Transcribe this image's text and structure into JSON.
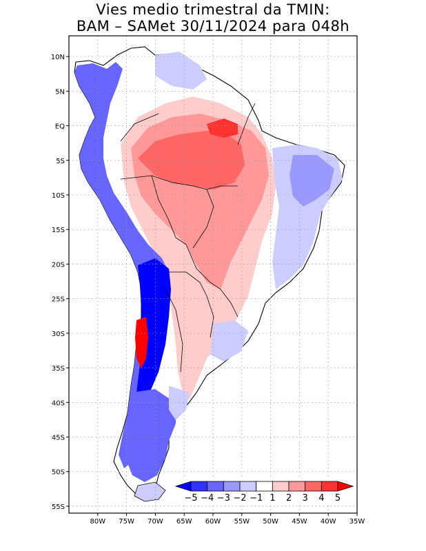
{
  "title": {
    "line1": "Vies medio trimestral da TMIN:",
    "line2": "BAM – SAMet 30/11/2024  para 048h"
  },
  "map": {
    "region": "South America",
    "lon_range": [
      -85,
      -35
    ],
    "lat_range": [
      -56,
      13
    ],
    "grid": true,
    "lat_ticks": [
      {
        "value": 10,
        "label": "10N"
      },
      {
        "value": 5,
        "label": "5N"
      },
      {
        "value": 0,
        "label": "EQ"
      },
      {
        "value": -5,
        "label": "5S"
      },
      {
        "value": -10,
        "label": "10S"
      },
      {
        "value": -15,
        "label": "15S"
      },
      {
        "value": -20,
        "label": "20S"
      },
      {
        "value": -25,
        "label": "25S"
      },
      {
        "value": -30,
        "label": "30S"
      },
      {
        "value": -35,
        "label": "35S"
      },
      {
        "value": -40,
        "label": "40S"
      },
      {
        "value": -45,
        "label": "45S"
      },
      {
        "value": -50,
        "label": "50S"
      },
      {
        "value": -55,
        "label": "55S"
      }
    ],
    "lon_ticks": [
      {
        "value": -80,
        "label": "80W"
      },
      {
        "value": -75,
        "label": "75W"
      },
      {
        "value": -70,
        "label": "70W"
      },
      {
        "value": -65,
        "label": "65W"
      },
      {
        "value": -60,
        "label": "60W"
      },
      {
        "value": -55,
        "label": "55W"
      },
      {
        "value": -50,
        "label": "50W"
      },
      {
        "value": -45,
        "label": "45W"
      },
      {
        "value": -40,
        "label": "40W"
      },
      {
        "value": -35,
        "label": "35W"
      }
    ]
  },
  "colorbar": {
    "labels": [
      "−5",
      "−4",
      "−3",
      "−2",
      "−1",
      "1",
      "2",
      "3",
      "4",
      "5"
    ],
    "colors": [
      "#0000ff",
      "#3232ff",
      "#6666ff",
      "#9999ff",
      "#ccccff",
      "#ffffff",
      "#ffcccc",
      "#ff9999",
      "#ff6666",
      "#ff3232",
      "#ff0000"
    ]
  },
  "colors": {
    "strong_cold": "#0000ff",
    "cold": "#6666ff",
    "weak_cold": "#ccccff",
    "weak_warm": "#ffcccc",
    "warm": "#ff9999",
    "strong_warm": "#ff3232"
  }
}
